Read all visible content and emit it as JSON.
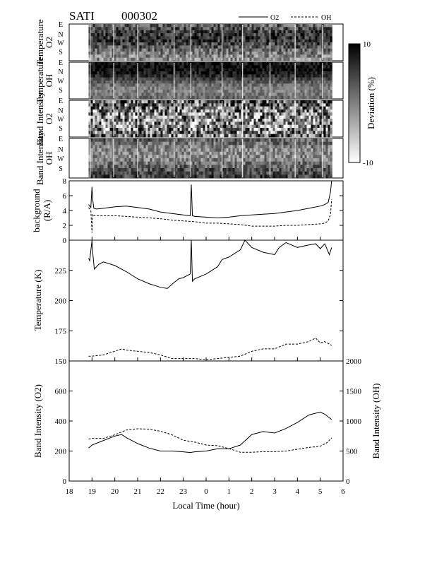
{
  "header": {
    "instrument": "SATI",
    "date": "000302"
  },
  "legend": [
    {
      "name": "O2",
      "style": "solid"
    },
    {
      "name": "OH",
      "style": "dashed"
    }
  ],
  "colorbar": {
    "label": "Deviation  (%)",
    "min_label": "-10",
    "max_label": "10",
    "range": [
      -10,
      10
    ]
  },
  "x_axis": {
    "label": "Local  Time  (hour)",
    "ticks": [
      "18",
      "19",
      "20",
      "21",
      "22",
      "23",
      "0",
      "1",
      "2",
      "3",
      "4",
      "5",
      "6"
    ]
  },
  "keograms": [
    {
      "label_line1": "Temperature",
      "label_line2": "O2",
      "directions": [
        "E",
        "N",
        "W",
        "S"
      ],
      "texture": "temp_o2"
    },
    {
      "label_line1": "Temperature",
      "label_line2": "OH",
      "directions": [
        "E",
        "N",
        "W",
        "S"
      ],
      "texture": "temp_oh"
    },
    {
      "label_line1": "Band  Intensity",
      "label_line2": "O2",
      "directions": [
        "E",
        "N",
        "W",
        "S"
      ],
      "texture": "int_o2"
    },
    {
      "label_line1": "Band  Intensity",
      "label_line2": "OH",
      "directions": [
        "E",
        "N",
        "W",
        "S"
      ],
      "texture": "int_oh"
    }
  ],
  "chart_data": [
    {
      "type": "line",
      "ylabel_line1": "background",
      "ylabel_line2": "(R/A)",
      "ylim": [
        0,
        8
      ],
      "yticks": [
        "0",
        "2",
        "4",
        "6",
        "8"
      ],
      "x_unit": "local hour (continuous past midnight: 24 = 0, 29 = 5)",
      "series": [
        {
          "name": "O2",
          "style": "solid",
          "x": [
            18.85,
            18.95,
            19.0,
            19.03,
            19.08,
            19.2,
            19.5,
            20.0,
            20.5,
            21.0,
            21.5,
            22.0,
            22.5,
            23.0,
            23.3,
            23.35,
            23.4,
            23.5,
            24.0,
            24.5,
            25.0,
            25.5,
            26.0,
            26.5,
            27.0,
            27.5,
            28.0,
            28.5,
            29.0,
            29.2,
            29.35,
            29.45,
            29.5
          ],
          "y": [
            4.8,
            4.4,
            7.2,
            5.5,
            4.3,
            4.2,
            4.3,
            4.5,
            4.6,
            4.4,
            4.2,
            3.8,
            3.6,
            3.4,
            3.3,
            7.5,
            3.3,
            3.2,
            3.1,
            3.0,
            3.1,
            3.3,
            3.4,
            3.5,
            3.6,
            3.8,
            4.0,
            4.3,
            4.6,
            4.8,
            5.1,
            6.5,
            8.0
          ]
        },
        {
          "name": "OH",
          "style": "dashed",
          "x": [
            18.85,
            18.95,
            19.0,
            19.03,
            19.08,
            19.5,
            20.0,
            20.5,
            21.0,
            21.5,
            22.0,
            22.5,
            23.0,
            23.5,
            24.0,
            24.5,
            25.0,
            25.5,
            26.0,
            26.5,
            27.0,
            27.5,
            28.0,
            28.5,
            29.0,
            29.2,
            29.35,
            29.45,
            29.5
          ],
          "y": [
            4.4,
            4.0,
            1.0,
            3.5,
            3.3,
            3.3,
            3.3,
            3.2,
            3.1,
            3.0,
            2.9,
            2.7,
            2.6,
            2.5,
            2.3,
            2.3,
            2.2,
            2.1,
            1.9,
            1.9,
            1.9,
            2.0,
            2.0,
            2.1,
            2.2,
            2.3,
            2.6,
            3.5,
            5.5
          ]
        }
      ]
    },
    {
      "type": "line",
      "ylabel": "Temperature  (K)",
      "ylim": [
        150,
        250
      ],
      "yticks": [
        "150",
        "175",
        "200",
        "225"
      ],
      "series": [
        {
          "name": "O2",
          "style": "solid",
          "x": [
            18.85,
            18.9,
            19.0,
            19.03,
            19.1,
            19.3,
            19.5,
            20.0,
            20.5,
            21.0,
            21.5,
            22.0,
            22.3,
            22.6,
            22.8,
            23.0,
            23.3,
            23.35,
            23.4,
            23.5,
            24.0,
            24.5,
            24.7,
            25.0,
            25.5,
            25.7,
            26.0,
            26.5,
            27.0,
            27.2,
            27.5,
            28.0,
            28.5,
            28.8,
            29.0,
            29.2,
            29.4,
            29.5
          ],
          "y": [
            235,
            233,
            250,
            240,
            226,
            230,
            232,
            229,
            224,
            218,
            214,
            211,
            210,
            215,
            218,
            219,
            222,
            250,
            216,
            218,
            222,
            228,
            234,
            236,
            242,
            250,
            244,
            240,
            238,
            244,
            248,
            244,
            246,
            247,
            243,
            247,
            238,
            244
          ]
        },
        {
          "name": "OH",
          "style": "dashed",
          "x": [
            18.85,
            19.0,
            19.5,
            20.0,
            20.3,
            20.5,
            21.0,
            21.5,
            22.0,
            22.5,
            23.0,
            23.5,
            24.0,
            24.5,
            25.0,
            25.5,
            26.0,
            26.5,
            27.0,
            27.5,
            28.0,
            28.5,
            28.8,
            29.0,
            29.2,
            29.5
          ],
          "y": [
            154,
            154,
            155,
            158,
            160,
            159,
            158,
            157,
            155,
            152,
            152,
            152,
            151,
            152,
            153,
            154,
            158,
            160,
            160,
            164,
            164,
            166,
            169,
            165,
            166,
            163
          ]
        }
      ]
    },
    {
      "type": "line",
      "ylabel": "Band  Intensity  (O2)",
      "ylabel_right": "Band  Intensity  (OH)",
      "ylim": [
        0,
        800
      ],
      "yticks": [
        "0",
        "200",
        "400",
        "600"
      ],
      "ylim_right": [
        0,
        2000
      ],
      "yticks_right": [
        "0",
        "500",
        "1000",
        "1500",
        "2000"
      ],
      "series": [
        {
          "name": "O2",
          "style": "solid",
          "axis": "left",
          "x": [
            18.85,
            19.0,
            19.5,
            20.0,
            20.3,
            20.5,
            21.0,
            21.5,
            22.0,
            22.5,
            23.0,
            23.3,
            23.5,
            24.0,
            24.5,
            25.0,
            25.5,
            26.0,
            26.5,
            27.0,
            27.5,
            28.0,
            28.5,
            29.0,
            29.2,
            29.5
          ],
          "y": [
            220,
            240,
            270,
            300,
            310,
            290,
            250,
            220,
            200,
            200,
            195,
            190,
            195,
            200,
            215,
            215,
            240,
            310,
            330,
            320,
            350,
            390,
            440,
            460,
            445,
            410
          ]
        },
        {
          "name": "OH",
          "style": "dashed",
          "axis": "right",
          "x": [
            18.85,
            19.0,
            19.5,
            20.0,
            20.5,
            21.0,
            21.5,
            22.0,
            22.5,
            23.0,
            23.5,
            24.0,
            24.5,
            25.0,
            25.5,
            26.0,
            26.5,
            27.0,
            27.5,
            28.0,
            28.5,
            29.0,
            29.3,
            29.5
          ],
          "y": [
            700,
            710,
            710,
            770,
            850,
            870,
            865,
            830,
            770,
            680,
            650,
            600,
            590,
            540,
            480,
            480,
            490,
            490,
            500,
            530,
            560,
            580,
            640,
            720
          ]
        }
      ]
    }
  ]
}
